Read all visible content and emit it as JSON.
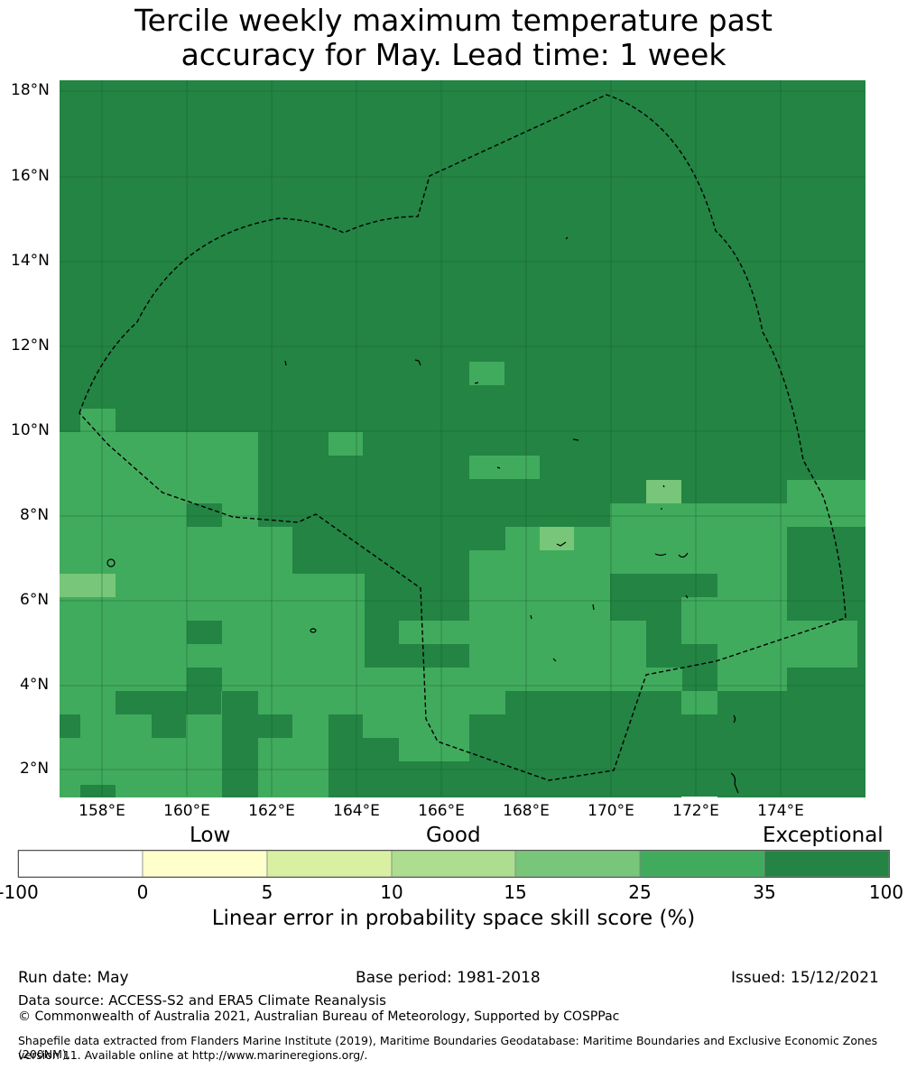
{
  "title": {
    "line1": "Tercile weekly maximum temperature past",
    "line2": "accuracy for May. Lead time: 1 week"
  },
  "map": {
    "lat_labels": [
      "18°N",
      "16°N",
      "14°N",
      "12°N",
      "10°N",
      "8°N",
      "6°N",
      "4°N",
      "2°N"
    ],
    "lon_labels": [
      "158°E",
      "160°E",
      "162°E",
      "164°E",
      "166°E",
      "168°E",
      "170°E",
      "172°E",
      "174°E"
    ],
    "colors": {
      "exceptional_dark": "#238443",
      "exceptional_light": "#41ab5d",
      "good_high": "#78c679",
      "boundary": "#000000",
      "grid": "#1a5e30"
    }
  },
  "colorbar": {
    "categories": [
      "Low",
      "Good",
      "Exceptional"
    ],
    "ticks": [
      "-100",
      "0",
      "5",
      "10",
      "15",
      "25",
      "35",
      "100"
    ],
    "colors": [
      "#ffffff",
      "#ffffcc",
      "#d9f0a3",
      "#addd8e",
      "#78c679",
      "#41ab5d",
      "#238443"
    ],
    "label": "Linear error in probability space skill score (%)"
  },
  "footer": {
    "run_date": "Run date: May",
    "base_period": "Base period: 1981-2018",
    "issued": "Issued: 15/12/2021",
    "data_source": "Data source: ACCESS-S2 and ERA5 Climate Reanalysis",
    "copyright": "© Commonwealth of Australia 2021, Australian Bureau of Meteorology, Supported by COSPPac",
    "shapefile_line1": "Shapefile data extracted from Flanders Marine Institute (2019), Maritime Boundaries Geodatabase: Maritime Boundaries and Exclusive Economic Zones (200NM),",
    "shapefile_line2": "version 11. Available online at http://www.marineregions.org/."
  }
}
